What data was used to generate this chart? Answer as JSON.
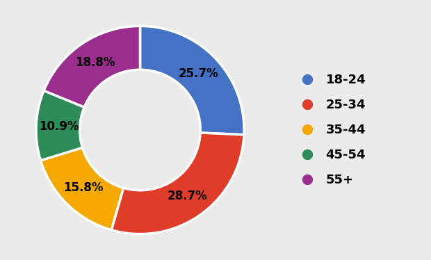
{
  "labels": [
    "18-24",
    "25-34",
    "35-44",
    "45-54",
    "55+"
  ],
  "values": [
    25.7,
    28.7,
    15.8,
    10.9,
    18.8
  ],
  "colors": [
    "#4472C4",
    "#E03C2A",
    "#F5A800",
    "#2D8B57",
    "#9B2D8E"
  ],
  "background_color": "#EBEBEB",
  "title_fontsize": 15,
  "label_fontsize": 12,
  "legend_fontsize": 13,
  "donut_width": 0.42,
  "pct_distance": 0.78
}
